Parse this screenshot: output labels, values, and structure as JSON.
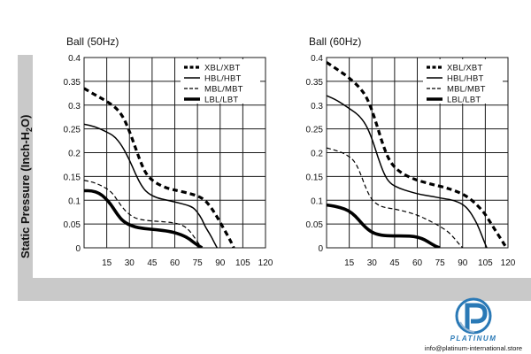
{
  "colors": {
    "background": "#ffffff",
    "frame": "#c9c9c9",
    "grid": "#1a1a1a",
    "curve": "#000000",
    "brand": "#2a79b6"
  },
  "y_axis_label": "Static Pressure (Inch-H",
  "y_axis_label_sub": "2",
  "y_axis_label_end": "O)",
  "brand": {
    "name": "PLATINUM",
    "email": "info@platinum-international.store",
    "logo_icon": "platinum-p-logo-icon"
  },
  "chart_data": [
    {
      "type": "line",
      "title": "Ball (50Hz)",
      "xlabel": "",
      "ylabel": "Static Pressure (Inch-H2O)",
      "xlim": [
        0,
        120
      ],
      "ylim": [
        0,
        0.4
      ],
      "x_ticks": [
        "15",
        "30",
        "45",
        "60",
        "75",
        "90",
        "105",
        "120"
      ],
      "y_ticks": [
        "0.4",
        "0.35",
        "0.3",
        "0.25",
        "0.2",
        "0.15",
        "0.1",
        "0.05",
        "0"
      ],
      "legend_position": "top-right",
      "series": [
        {
          "name": "XBL/XBT",
          "style": "bold-dashed",
          "x": [
            0,
            7,
            14,
            21,
            26,
            30,
            34,
            38,
            42,
            48,
            55,
            62,
            70,
            76,
            80,
            84,
            88,
            92,
            96,
            99
          ],
          "y": [
            0.335,
            0.322,
            0.31,
            0.295,
            0.275,
            0.245,
            0.21,
            0.175,
            0.15,
            0.135,
            0.125,
            0.12,
            0.114,
            0.108,
            0.1,
            0.085,
            0.065,
            0.042,
            0.02,
            0.0
          ]
        },
        {
          "name": "HBL/HBT",
          "style": "solid",
          "x": [
            0,
            7,
            14,
            20,
            25,
            30,
            34,
            38,
            42,
            48,
            55,
            62,
            68,
            72,
            75,
            78,
            80,
            83,
            86,
            88
          ],
          "y": [
            0.26,
            0.255,
            0.245,
            0.235,
            0.215,
            0.185,
            0.155,
            0.13,
            0.115,
            0.105,
            0.1,
            0.095,
            0.09,
            0.085,
            0.075,
            0.06,
            0.045,
            0.03,
            0.012,
            0.0
          ]
        },
        {
          "name": "MBL/MBT",
          "style": "dashed",
          "x": [
            0,
            6,
            12,
            18,
            22,
            26,
            30,
            34,
            40,
            46,
            52,
            58,
            63,
            67,
            70,
            73,
            76,
            78
          ],
          "y": [
            0.142,
            0.138,
            0.13,
            0.118,
            0.1,
            0.082,
            0.07,
            0.062,
            0.058,
            0.056,
            0.055,
            0.053,
            0.05,
            0.044,
            0.035,
            0.022,
            0.008,
            0.0
          ]
        },
        {
          "name": "LBL/LBT",
          "style": "bold-solid",
          "x": [
            0,
            5,
            10,
            14,
            18,
            22,
            26,
            32,
            40,
            48,
            56,
            62,
            66,
            70,
            73,
            76,
            78
          ],
          "y": [
            0.12,
            0.12,
            0.115,
            0.105,
            0.09,
            0.07,
            0.055,
            0.045,
            0.04,
            0.038,
            0.035,
            0.03,
            0.025,
            0.018,
            0.01,
            0.004,
            0.0
          ]
        }
      ]
    },
    {
      "type": "line",
      "title": "Ball (60Hz)",
      "xlabel": "",
      "ylabel": "Static Pressure (Inch-H2O)",
      "xlim": [
        0,
        120
      ],
      "ylim": [
        0,
        0.4
      ],
      "x_ticks": [
        "15",
        "30",
        "45",
        "60",
        "75",
        "90",
        "105",
        "120"
      ],
      "y_ticks": [
        "0.4",
        "0.35",
        "0.3",
        "0.25",
        "0.2",
        "0.15",
        "0.1",
        "0.05",
        "0"
      ],
      "legend_position": "top-right",
      "series": [
        {
          "name": "XBL/XBT",
          "style": "bold-dashed",
          "x": [
            0,
            7,
            14,
            21,
            26,
            30,
            34,
            38,
            42,
            48,
            55,
            62,
            70,
            78,
            85,
            92,
            98,
            104,
            108,
            112,
            116,
            119
          ],
          "y": [
            0.39,
            0.375,
            0.36,
            0.34,
            0.32,
            0.29,
            0.25,
            0.21,
            0.18,
            0.16,
            0.148,
            0.14,
            0.133,
            0.127,
            0.12,
            0.11,
            0.095,
            0.075,
            0.055,
            0.035,
            0.015,
            0.0
          ]
        },
        {
          "name": "HBL/HBT",
          "style": "solid",
          "x": [
            0,
            7,
            14,
            21,
            26,
            30,
            34,
            38,
            42,
            48,
            55,
            62,
            70,
            78,
            84,
            90,
            94,
            98,
            101,
            104,
            106
          ],
          "y": [
            0.32,
            0.31,
            0.295,
            0.28,
            0.26,
            0.23,
            0.19,
            0.155,
            0.135,
            0.125,
            0.118,
            0.112,
            0.108,
            0.103,
            0.1,
            0.092,
            0.08,
            0.06,
            0.04,
            0.015,
            0.0
          ]
        },
        {
          "name": "MBL/MBT",
          "style": "dashed",
          "x": [
            0,
            6,
            12,
            18,
            22,
            26,
            30,
            34,
            38,
            44,
            50,
            56,
            62,
            68,
            74,
            80,
            84,
            87,
            90
          ],
          "y": [
            0.21,
            0.205,
            0.198,
            0.185,
            0.16,
            0.125,
            0.1,
            0.09,
            0.085,
            0.082,
            0.078,
            0.073,
            0.066,
            0.057,
            0.047,
            0.035,
            0.022,
            0.01,
            0.0
          ]
        },
        {
          "name": "LBL/LBT",
          "style": "bold-solid",
          "x": [
            0,
            6,
            12,
            17,
            21,
            25,
            30,
            36,
            44,
            52,
            58,
            63,
            67,
            70,
            73,
            75
          ],
          "y": [
            0.09,
            0.087,
            0.082,
            0.073,
            0.06,
            0.045,
            0.032,
            0.026,
            0.025,
            0.025,
            0.024,
            0.02,
            0.013,
            0.007,
            0.002,
            0.0
          ]
        }
      ]
    }
  ]
}
